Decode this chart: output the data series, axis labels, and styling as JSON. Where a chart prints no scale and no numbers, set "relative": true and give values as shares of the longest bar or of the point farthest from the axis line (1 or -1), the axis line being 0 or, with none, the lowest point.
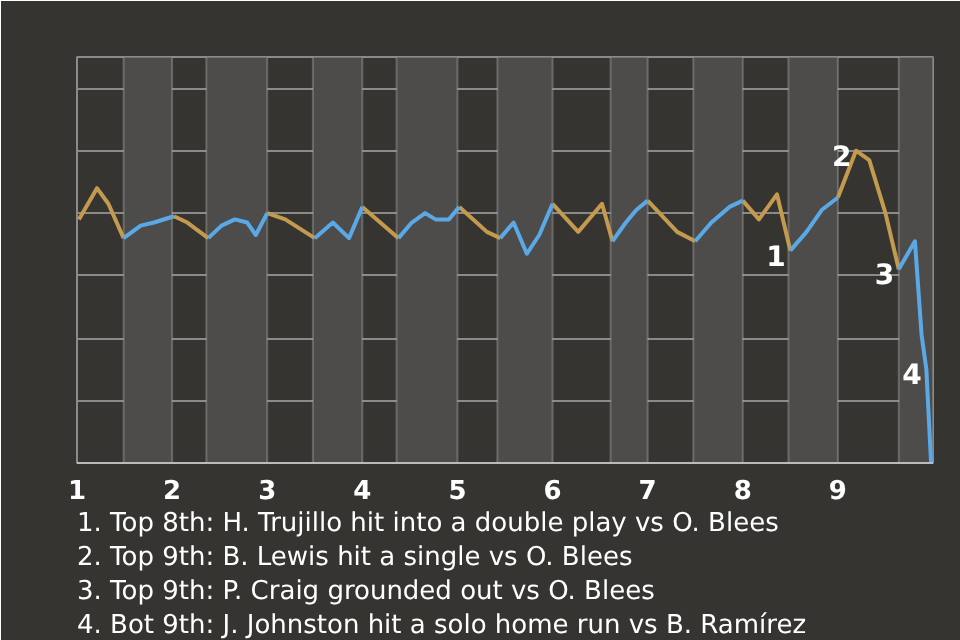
{
  "chart_data": {
    "type": "line",
    "relative": true,
    "xlim": [
      1,
      10
    ],
    "xticks": [
      1,
      2,
      3,
      4,
      5,
      6,
      7,
      8,
      9
    ],
    "grid": "y",
    "marker": "none",
    "line_style": "solid",
    "series": [
      {
        "color": "#c39a4e",
        "x": [
          1.02,
          1.21,
          1.33,
          1.49,
          1.74,
          2.02,
          2.16,
          2.38,
          2.66,
          3.0,
          3.19,
          3.5,
          3.74,
          4.0,
          4.38,
          4.7,
          5.02,
          5.31,
          5.45,
          5.73,
          6.0,
          6.27,
          6.52,
          6.63,
          6.79,
          7.0,
          7.31,
          7.5,
          7.74,
          8.0,
          8.17,
          8.36,
          8.5,
          8.74,
          9.0,
          9.19,
          9.33,
          9.5,
          9.64
        ],
        "values": [
          0.78,
          0.88,
          0.83,
          0.72,
          null,
          0.79,
          0.77,
          0.72,
          null,
          0.8,
          0.78,
          0.72,
          null,
          0.82,
          0.72,
          null,
          0.82,
          0.74,
          0.72,
          null,
          0.83,
          0.74,
          0.83,
          0.71,
          null,
          0.84,
          0.74,
          0.71,
          null,
          0.84,
          0.78,
          0.86,
          0.68,
          null,
          0.85,
          1.0,
          0.97,
          0.8,
          0.62
        ]
      },
      {
        "color": "#5aa9e6",
        "x": [
          1.49,
          1.67,
          1.81,
          2.02,
          2.2,
          2.38,
          2.52,
          2.66,
          2.79,
          2.88,
          3.0,
          3.26,
          3.5,
          3.69,
          3.86,
          4.0,
          4.16,
          4.38,
          4.52,
          4.66,
          4.77,
          4.91,
          5.02,
          5.22,
          5.45,
          5.59,
          5.73,
          5.86,
          6.0,
          6.3,
          6.63,
          6.77,
          6.88,
          7.0,
          7.24,
          7.5,
          7.67,
          7.86,
          8.0,
          8.26,
          8.5,
          8.67,
          8.83,
          9.0,
          9.33,
          9.64,
          9.81,
          9.88,
          9.93,
          9.98
        ],
        "values": [
          0.72,
          0.76,
          0.77,
          0.79,
          null,
          0.72,
          0.76,
          0.78,
          0.77,
          0.73,
          0.8,
          null,
          0.72,
          0.77,
          0.72,
          0.82,
          null,
          0.72,
          0.77,
          0.8,
          0.78,
          0.78,
          0.82,
          null,
          0.72,
          0.77,
          0.67,
          0.73,
          0.83,
          null,
          0.71,
          0.77,
          0.81,
          0.84,
          null,
          0.71,
          0.77,
          0.82,
          0.84,
          null,
          0.68,
          0.74,
          0.81,
          0.85,
          null,
          0.62,
          0.71,
          0.41,
          0.3,
          0
        ]
      }
    ],
    "bands": [
      {
        "axis": "x",
        "from": 1.49,
        "to": 2,
        "color": "#4d4c4a"
      },
      {
        "axis": "x",
        "from": 2.36,
        "to": 3,
        "color": "#4d4c4a"
      },
      {
        "axis": "x",
        "from": 3.48,
        "to": 4,
        "color": "#4d4c4a"
      },
      {
        "axis": "x",
        "from": 4.36,
        "to": 5,
        "color": "#4d4c4a"
      },
      {
        "axis": "x",
        "from": 5.42,
        "to": 6,
        "color": "#4d4c4a"
      },
      {
        "axis": "x",
        "from": 6.61,
        "to": 7,
        "color": "#4d4c4a"
      },
      {
        "axis": "x",
        "from": 7.48,
        "to": 8,
        "color": "#4d4c4a"
      },
      {
        "axis": "x",
        "from": 8.48,
        "to": 9,
        "color": "#4d4c4a"
      },
      {
        "axis": "x",
        "from": 9.64,
        "to": 10,
        "color": "#4d4c4a"
      }
    ],
    "annotations": [
      {
        "text": "1",
        "x": 8.5,
        "y": 0.68
      },
      {
        "text": "2",
        "x": 9.19,
        "y": 1.0
      },
      {
        "text": "3",
        "x": 9.64,
        "y": 0.62
      },
      {
        "text": "4",
        "x": 9.93,
        "y": 0.3
      },
      "1. Top 8th: H. Trujillo hit into a double play vs O. Blees",
      "2. Top 9th: B. Lewis hit a single vs O. Blees",
      "3. Top 9th: P. Craig grounded out vs O. Blees",
      "4. Bot 9th: J. Johnston hit a solo home run vs B. Ramírez"
    ]
  }
}
